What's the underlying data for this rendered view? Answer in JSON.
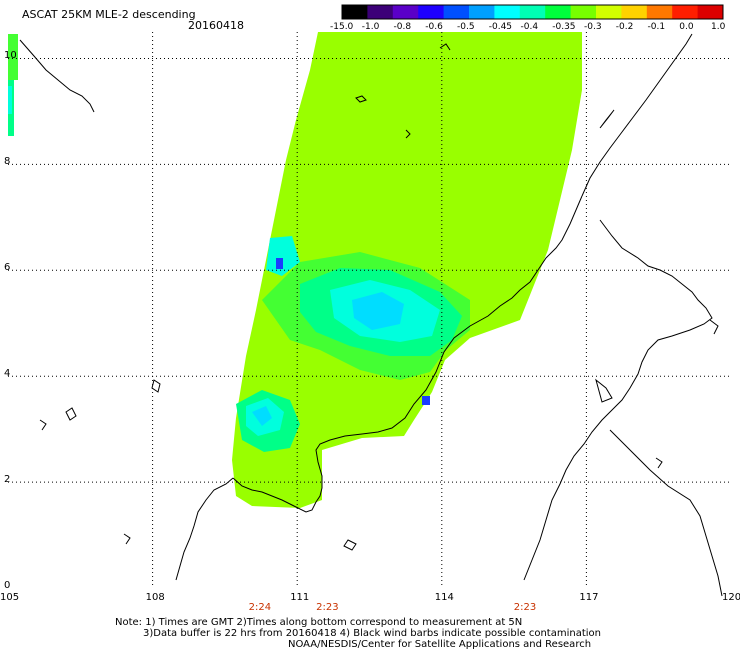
{
  "header": {
    "title": "ASCAT 25KM MLE-2 descending",
    "date": "20160418"
  },
  "colorbar": {
    "tick_labels": [
      "-15.0",
      "-1.0",
      "-0.8",
      "-0.6",
      "-0.5",
      "-0.45",
      "-0.4",
      "-0.35",
      "-0.3",
      "-0.2",
      "-0.1",
      "0.0",
      "1.0"
    ],
    "colors": [
      "#000000",
      "#3c0078",
      "#5a00c8",
      "#1e00ff",
      "#0050ff",
      "#00a0ff",
      "#00ffff",
      "#00ffb4",
      "#00ff3c",
      "#78ff00",
      "#d2ff00",
      "#ffd200",
      "#ff7800",
      "#ff1e00",
      "#dc0000"
    ]
  },
  "map": {
    "lon_labels": [
      "105",
      "108",
      "111",
      "114",
      "117",
      "120"
    ],
    "lat_labels": [
      "0",
      "2",
      "4",
      "6",
      "8",
      "10"
    ],
    "lon_range": [
      105,
      120
    ],
    "lat_range": [
      0,
      10.5
    ],
    "gridlines": true,
    "swath_colors": {
      "green_yellow": "#99ff00",
      "green": "#44ff33",
      "light_green": "#00ff88",
      "cyan": "#00ffdd",
      "light_blue": "#00ddff",
      "blue": "#1a3cff",
      "coast": "#000000"
    }
  },
  "times": [
    {
      "label": "2:24",
      "lon": 110.2
    },
    {
      "label": "2:23",
      "lon": 111.6
    },
    {
      "label": "2:23",
      "lon": 115.7
    }
  ],
  "footer": {
    "line1": "Note: 1) Times are GMT 2)Times along bottom correspond to measurement at 5N",
    "line2": "3)Data buffer is 22 hrs from 20160418 4) Black wind barbs indicate possible contamination",
    "line3": "NOAA/NESDIS/Center for Satellite Applications and Research"
  }
}
